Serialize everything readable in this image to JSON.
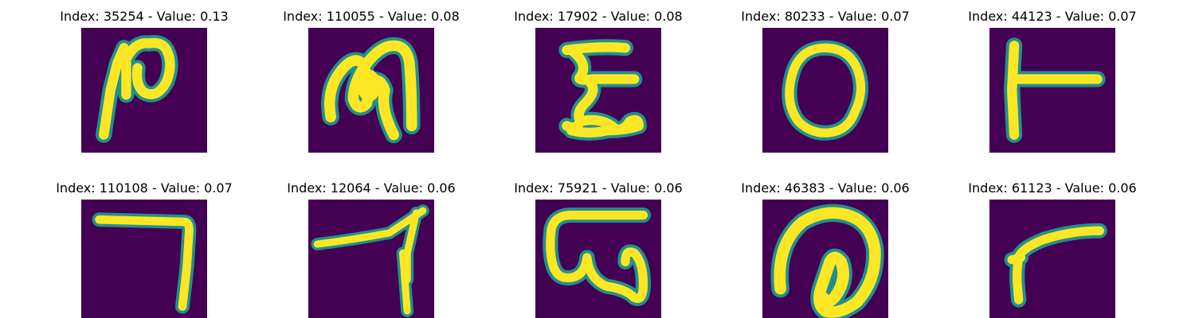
{
  "tiles": [
    {
      "title": "Index: 35254 - Value: 0.13",
      "glyph": "glyph-n-loop"
    },
    {
      "title": "Index: 110055 - Value: 0.08",
      "glyph": "glyph-m-loop"
    },
    {
      "title": "Index: 17902 - Value: 0.08",
      "glyph": "glyph-epsilon"
    },
    {
      "title": "Index: 80233 - Value: 0.07",
      "glyph": "glyph-o"
    },
    {
      "title": "Index: 44123 - Value: 0.07",
      "glyph": "glyph-t-sideways"
    },
    {
      "title": "Index: 110108 - Value: 0.07",
      "glyph": "glyph-seven-angle"
    },
    {
      "title": "Index: 12064 - Value: 0.06",
      "glyph": "glyph-seven-stroke"
    },
    {
      "title": "Index: 75921 - Value: 0.06",
      "glyph": "glyph-omega"
    },
    {
      "title": "Index: 46383 - Value: 0.06",
      "glyph": "glyph-loop"
    },
    {
      "title": "Index: 61123 - Value: 0.06",
      "glyph": "glyph-gamma"
    }
  ],
  "colors": {
    "background": "#440154",
    "stroke_core": "#fde725",
    "stroke_edge": "#21918c"
  }
}
